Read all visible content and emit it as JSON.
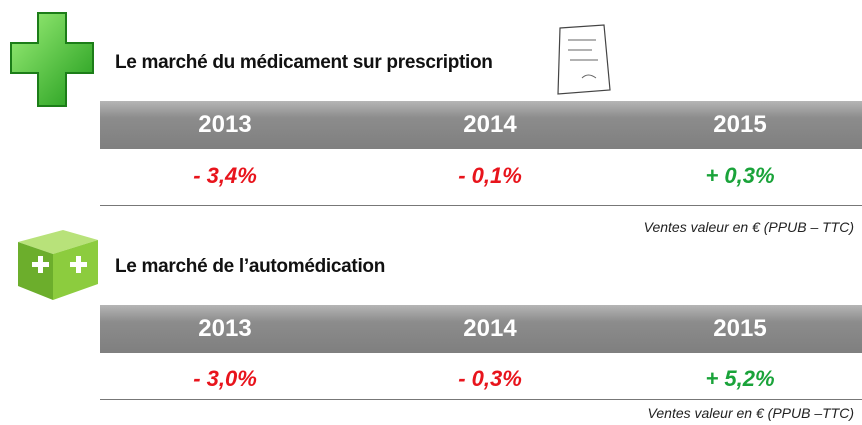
{
  "sections": [
    {
      "title": "Le marché du médicament sur prescription",
      "table": {
        "headers": [
          "2013",
          "2014",
          "2015"
        ],
        "values": [
          "- 3,4%",
          "- 0,1%",
          "+ 0,3%"
        ],
        "colors": [
          "#e8141c",
          "#e8141c",
          "#1aa33a"
        ]
      },
      "note": "Ventes valeur en € (PPUB – TTC)"
    },
    {
      "title": "Le marché de l’automédication",
      "table": {
        "headers": [
          "2013",
          "2014",
          "2015"
        ],
        "values": [
          "- 3,0%",
          "- 0,3%",
          "+ 5,2%"
        ],
        "colors": [
          "#e8141c",
          "#e8141c",
          "#1aa33a"
        ]
      },
      "note": "Ventes valeur en € (PPUB –TTC)"
    }
  ]
}
